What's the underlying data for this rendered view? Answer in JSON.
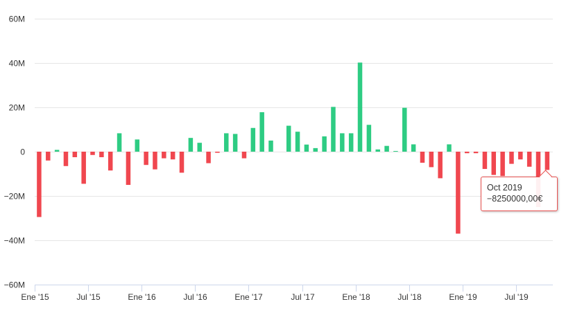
{
  "chart_data": {
    "type": "bar",
    "title": "",
    "xlabel": "",
    "ylabel": "",
    "ylim": [
      -60000000,
      60000000
    ],
    "y_ticks": [
      {
        "value": 60000000,
        "label": "60M"
      },
      {
        "value": 40000000,
        "label": "40M"
      },
      {
        "value": 20000000,
        "label": "20M"
      },
      {
        "value": 0,
        "label": "0"
      },
      {
        "value": -20000000,
        "label": "−20M"
      },
      {
        "value": -40000000,
        "label": "−40M"
      },
      {
        "value": -60000000,
        "label": "−60M"
      }
    ],
    "x_ticks": [
      {
        "index": 0,
        "label": "Ene '15"
      },
      {
        "index": 6,
        "label": "Jul '15"
      },
      {
        "index": 12,
        "label": "Ene '16"
      },
      {
        "index": 18,
        "label": "Jul '16"
      },
      {
        "index": 24,
        "label": "Ene '17"
      },
      {
        "index": 30,
        "label": "Jul '17"
      },
      {
        "index": 36,
        "label": "Ene '18"
      },
      {
        "index": 42,
        "label": "Jul '18"
      },
      {
        "index": 48,
        "label": "Ene '19"
      },
      {
        "index": 54,
        "label": "Jul '19"
      }
    ],
    "categories": [
      "Ene 2015",
      "Feb 2015",
      "Mar 2015",
      "Abr 2015",
      "May 2015",
      "Jun 2015",
      "Jul 2015",
      "Ago 2015",
      "Sep 2015",
      "Oct 2015",
      "Nov 2015",
      "Dic 2015",
      "Ene 2016",
      "Feb 2016",
      "Mar 2016",
      "Abr 2016",
      "May 2016",
      "Jun 2016",
      "Jul 2016",
      "Ago 2016",
      "Sep 2016",
      "Oct 2016",
      "Nov 2016",
      "Dic 2016",
      "Ene 2017",
      "Feb 2017",
      "Mar 2017",
      "Abr 2017",
      "May 2017",
      "Jun 2017",
      "Jul 2017",
      "Ago 2017",
      "Sep 2017",
      "Oct 2017",
      "Nov 2017",
      "Dic 2017",
      "Ene 2018",
      "Feb 2018",
      "Mar 2018",
      "Abr 2018",
      "May 2018",
      "Jun 2018",
      "Jul 2018",
      "Ago 2018",
      "Sep 2018",
      "Oct 2018",
      "Nov 2018",
      "Dic 2018",
      "Ene 2019",
      "Feb 2019",
      "Mar 2019",
      "Abr 2019",
      "May 2019",
      "Jun 2019",
      "Jul 2019",
      "Ago 2019",
      "Sep 2019",
      "Oct 2019"
    ],
    "values": [
      -29500000,
      -4000000,
      800000,
      -6500000,
      -2500000,
      -14500000,
      -1500000,
      -2500000,
      -8500000,
      8300000,
      -15000000,
      5500000,
      -6000000,
      -8000000,
      -3000000,
      -3500000,
      -9500000,
      6200000,
      4000000,
      -5200000,
      -500000,
      8300000,
      8000000,
      -3000000,
      10700000,
      17800000,
      5000000,
      0,
      11700000,
      9000000,
      3200000,
      1600000,
      6900000,
      20200000,
      8300000,
      8300000,
      40200000,
      12100000,
      1000000,
      2600000,
      300000,
      19800000,
      3300000,
      -5000000,
      -7000000,
      -12000000,
      3300000,
      -37000000,
      -700000,
      -700000,
      -7800000,
      -10500000,
      -11000000,
      -5500000,
      -3500000,
      -6800000,
      -25000000,
      -8250000
    ],
    "colors": {
      "positive": "#2ecc83",
      "negative": "#f0474f"
    },
    "grid": true,
    "legend": "none"
  },
  "tooltip": {
    "title": "Oct 2019",
    "value": "−8250000,00€",
    "border_color": "#e8504f"
  }
}
